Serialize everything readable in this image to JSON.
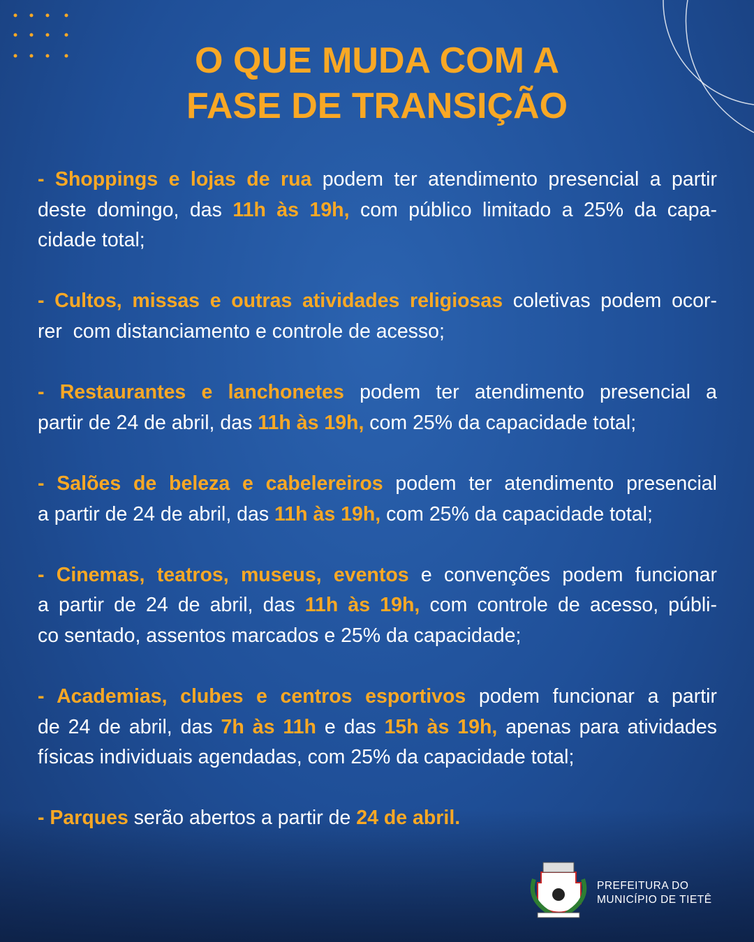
{
  "header": {
    "title_lines": [
      "O QUE MUDA COM A",
      "FASE DE TRANSIÇÃO"
    ]
  },
  "items": [
    {
      "lines": [
        [
          {
            "text": "- Shoppings e lojas de rua",
            "em": true
          },
          {
            "text": " podem ter atendimento presencial a partir",
            "em": false
          }
        ],
        [
          {
            "text": "deste domingo, das ",
            "em": false
          },
          {
            "text": "11h às 19h,",
            "em": true
          },
          {
            "text": " com público limitado a 25% da capa-",
            "em": false
          }
        ],
        [
          {
            "text": "cidade total;",
            "em": false
          }
        ]
      ]
    },
    {
      "lines": [
        [
          {
            "text": "- Cultos, missas e outras atividades religiosas",
            "em": true
          },
          {
            "text": " coletivas podem ocor-",
            "em": false
          }
        ],
        [
          {
            "text": "rer  com distanciamento e controle de acesso;",
            "em": false
          }
        ]
      ]
    },
    {
      "lines": [
        [
          {
            "text": "- Restaurantes e lanchonetes",
            "em": true
          },
          {
            "text": " podem ter atendimento presencial a",
            "em": false
          }
        ],
        [
          {
            "text": "partir de 24 de abril, das ",
            "em": false
          },
          {
            "text": "11h às 19h,",
            "em": true
          },
          {
            "text": " com 25% da capacidade total;",
            "em": false
          }
        ]
      ]
    },
    {
      "lines": [
        [
          {
            "text": "- Salões de beleza e cabelereiros",
            "em": true
          },
          {
            "text": " podem ter atendimento presencial",
            "em": false
          }
        ],
        [
          {
            "text": "a partir de 24 de abril, das ",
            "em": false
          },
          {
            "text": "11h às 19h,",
            "em": true
          },
          {
            "text": " com 25% da capacidade total;",
            "em": false
          }
        ]
      ]
    },
    {
      "lines": [
        [
          {
            "text": "- Cinemas, teatros, museus, eventos",
            "em": true
          },
          {
            "text": " e convenções podem funcionar",
            "em": false
          }
        ],
        [
          {
            "text": "a partir de 24 de abril, das ",
            "em": false
          },
          {
            "text": "11h às 19h,",
            "em": true
          },
          {
            "text": " com controle de acesso, públi-",
            "em": false
          }
        ],
        [
          {
            "text": "co sentado, assentos marcados e 25% da capacidade;",
            "em": false
          }
        ]
      ]
    },
    {
      "lines": [
        [
          {
            "text": "- Academias, clubes e centros esportivos",
            "em": true
          },
          {
            "text": " podem funcionar a partir",
            "em": false
          }
        ],
        [
          {
            "text": "de 24 de abril, das ",
            "em": false
          },
          {
            "text": "7h às 11h",
            "em": true
          },
          {
            "text": " e das ",
            "em": false
          },
          {
            "text": "15h às 19h,",
            "em": true
          },
          {
            "text": " apenas para atividades",
            "em": false
          }
        ],
        [
          {
            "text": "físicas individuais agendadas, com 25% da capacidade total;",
            "em": false
          }
        ]
      ]
    },
    {
      "lines": [
        [
          {
            "text": "- Parques",
            "em": true
          },
          {
            "text": " serão abertos a partir de ",
            "em": false
          },
          {
            "text": "24 de abril.",
            "em": true
          }
        ]
      ]
    }
  ],
  "footer": {
    "lines": [
      "PREFEITURA DO",
      "MUNICÍPIO DE TIETÊ"
    ]
  }
}
